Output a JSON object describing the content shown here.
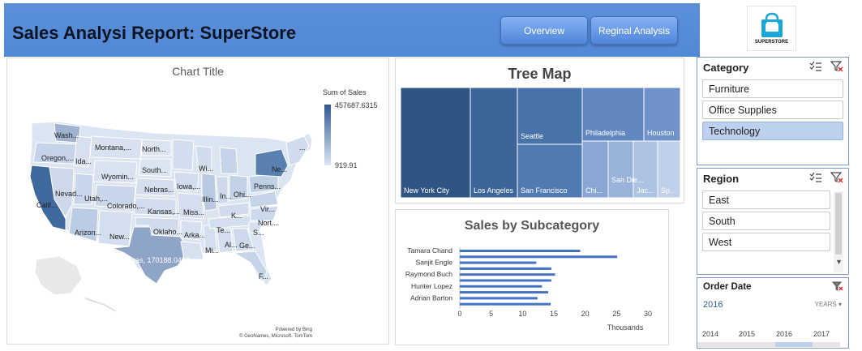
{
  "header": {
    "title": "Sales Analysi Report: SuperStore",
    "buttons": [
      "Overview",
      "Reginal Analysis"
    ]
  },
  "logo": {
    "text": "SUPERSTORE",
    "color": "#1ba6d6"
  },
  "map": {
    "title": "Chart Title",
    "legend_title": "Sum of Sales",
    "legend_max": "457687.6315",
    "legend_min": "919.91",
    "credit_1": "Powered by Bing",
    "credit_2": "© GeoNames, Microsoft, TomTom",
    "state_labels": [
      "Wash...",
      "Oregon,...",
      "Ida...",
      "Montana,...",
      "North...",
      "Wyomin...",
      "South...",
      "Nevad...",
      "Utah,...",
      "Colorado,...",
      "Nebras...",
      "Iowa,...",
      "Wi...",
      "Illin...",
      "In...",
      "Ohi...",
      "Penns...",
      "Ne...",
      "Calif...",
      "Arizon...",
      "New...",
      "Kansas,...",
      "Miss...",
      "K...",
      "Vir...",
      "Nort...",
      "Oklaho...",
      "Arka...",
      "Te...",
      "S...",
      "Mi...",
      "Al...",
      "Ge...",
      "F...",
      "...",
      "Texas, 170188.0458"
    ]
  },
  "treemap": {
    "title": "Tree Map",
    "tiles": [
      "New York City",
      "Los Angeles",
      "Seattle",
      "San Francisco",
      "Philadelphia",
      "Houston",
      "Chi...",
      "San Die...",
      "Jac...",
      "Sp..."
    ]
  },
  "chart_data": {
    "type": "bar",
    "title": "Sales by Subcategory",
    "categories": [
      "Tamara Chand",
      "",
      "Sanjit Engle",
      "",
      "Raymond Buch",
      "",
      "Hunter Lopez",
      "",
      "Adrian Barton",
      ""
    ],
    "values": [
      19.2,
      25.1,
      12.2,
      14.6,
      15.2,
      14.6,
      13.1,
      14.1,
      12.4,
      14.5
    ],
    "x_ticks": [
      "0",
      "5",
      "10",
      "15",
      "20",
      "25",
      "30"
    ],
    "xlim": [
      0,
      30
    ],
    "xlabel": "Thousands"
  },
  "category_slicer": {
    "title": "Category",
    "items": [
      {
        "label": "Furniture",
        "selected": false
      },
      {
        "label": "Office Supplies",
        "selected": false
      },
      {
        "label": "Technology",
        "selected": true
      }
    ]
  },
  "region_slicer": {
    "title": "Region",
    "items": [
      {
        "label": "East",
        "selected": false
      },
      {
        "label": "South",
        "selected": false
      },
      {
        "label": "West",
        "selected": false
      }
    ]
  },
  "date_slicer": {
    "title": "Order Date",
    "selected_year": "2016",
    "level": "YEARS",
    "years": [
      "2014",
      "2015",
      "2016",
      "2017"
    ]
  }
}
